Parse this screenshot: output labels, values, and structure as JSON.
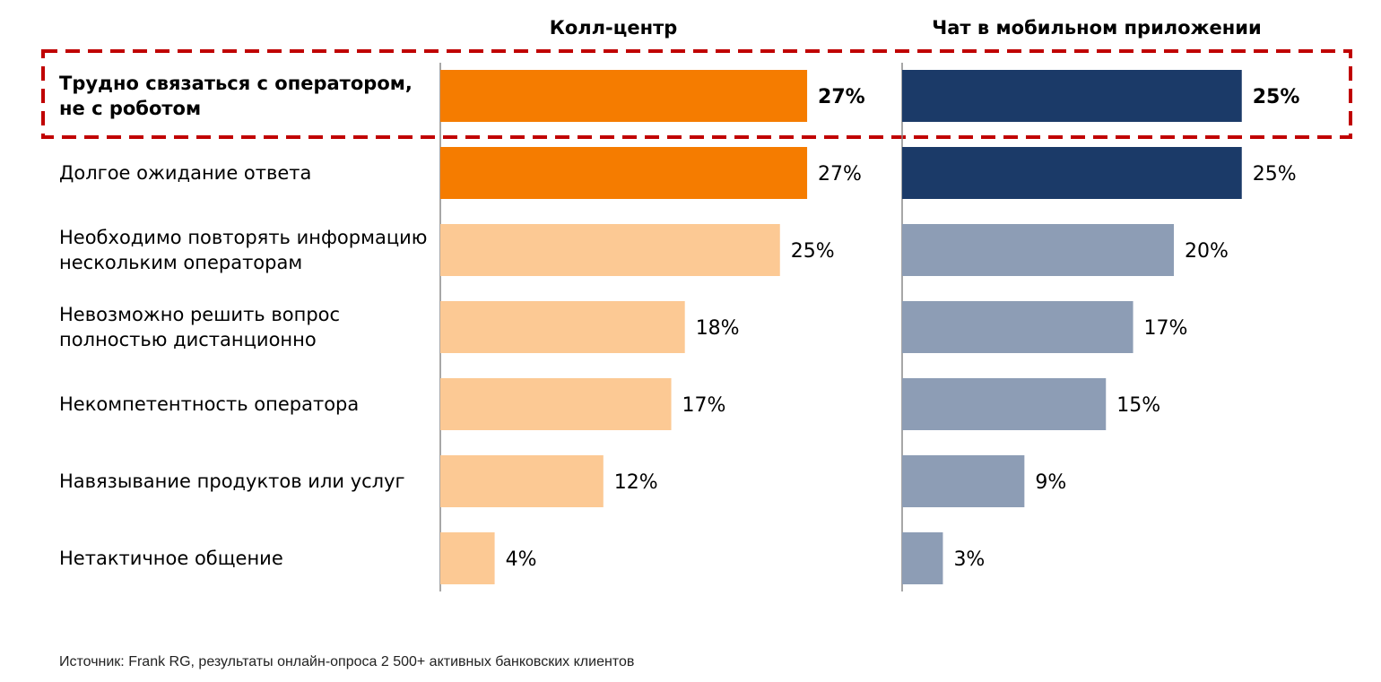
{
  "chart_data": {
    "type": "bar",
    "orientation": "horizontal",
    "categories": [
      [
        "Трудно связаться с оператором,",
        "не с роботом"
      ],
      [
        "Долгое ожидание ответа"
      ],
      [
        "Необходимо повторять информацию",
        "нескольким операторам"
      ],
      [
        "Невозможно решить вопрос",
        "полностью дистанционно"
      ],
      [
        "Некомпетентность оператора"
      ],
      [
        "Навязывание продуктов или услуг"
      ],
      [
        "Нетактичное общение"
      ]
    ],
    "highlighted_category": 0,
    "panels": [
      {
        "name": "Колл-центр",
        "values": [
          27,
          27,
          25,
          18,
          17,
          12,
          4
        ],
        "labels": [
          "27%",
          "27%",
          "25%",
          "18%",
          "17%",
          "12%",
          "4%"
        ],
        "colors": [
          "#F57C00",
          "#F57C00",
          "#FCC994",
          "#FCC994",
          "#FCC994",
          "#FCC994",
          "#FCC994"
        ]
      },
      {
        "name": "Чат в мобильном приложении",
        "values": [
          25,
          25,
          20,
          17,
          15,
          9,
          3
        ],
        "labels": [
          "25%",
          "25%",
          "20%",
          "17%",
          "15%",
          "9%",
          "3%"
        ],
        "colors": [
          "#1B3A68",
          "#1B3A68",
          "#8D9DB5",
          "#8D9DB5",
          "#8D9DB5",
          "#8D9DB5",
          "#8D9DB5"
        ]
      }
    ],
    "highlight_color": "#C00000",
    "grid": false
  },
  "source": "Источник: Frank RG, результаты онлайн-опроса 2 500+ активных банковских клиентов"
}
